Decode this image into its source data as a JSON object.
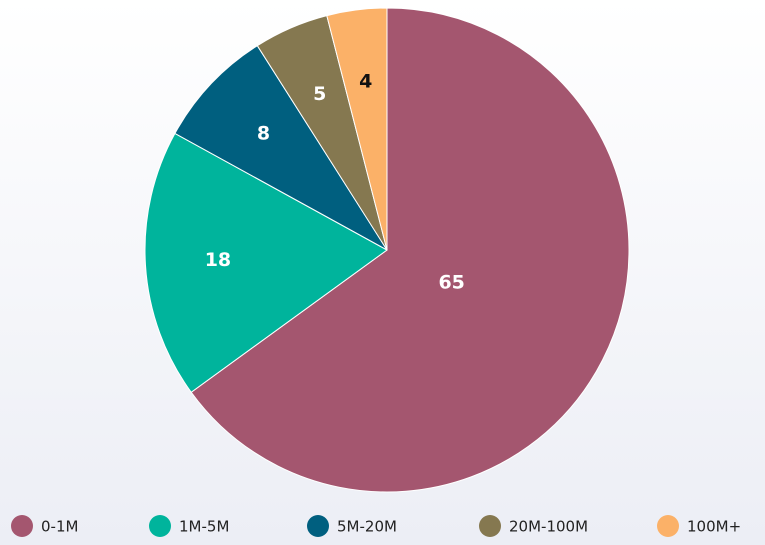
{
  "chart_data": {
    "type": "pie",
    "categories": [
      "0-1M",
      "1M-5M",
      "5M-20M",
      "20M-100M",
      "100M+"
    ],
    "values": [
      65,
      18,
      8,
      5,
      4
    ],
    "colors": [
      "#a4566f",
      "#00b49c",
      "#005f7f",
      "#857850",
      "#fbb168"
    ],
    "legend": "bottom"
  }
}
